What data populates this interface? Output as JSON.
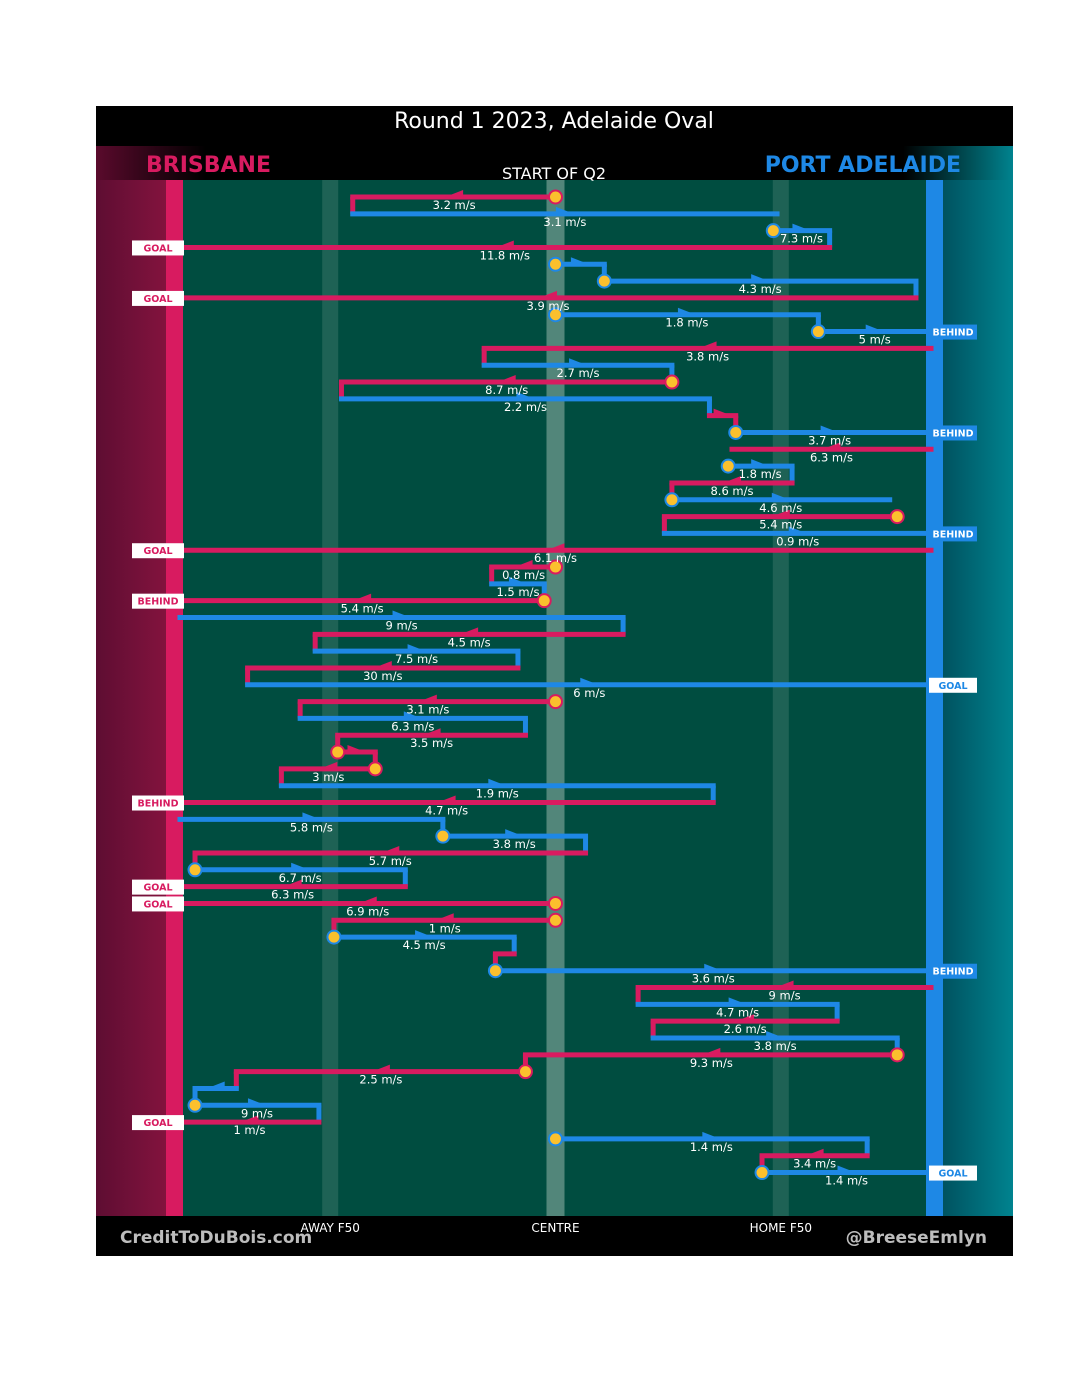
{
  "title": "Round 1 2023, Adelaide Oval",
  "teams": {
    "left": {
      "name": "BRISBANE",
      "color": "#d81b60"
    },
    "right": {
      "name": "PORT ADELAIDE",
      "color": "#1e88e5"
    }
  },
  "period_label": "START OF Q2",
  "credits": {
    "left": "CreditToDuBois.com",
    "right": "@BreeseEmlyn"
  },
  "colors": {
    "field": "#004d40",
    "brisbane": "#d81b60",
    "port_adelaide": "#1e88e5",
    "stoppage_marker": "#fbc02d",
    "top_bar": "#000000"
  },
  "chart_data": {
    "type": "line",
    "description_axis_x": [
      "AWAY F50",
      "CENTRE",
      "HOME F50"
    ],
    "x_marks": [
      {
        "label": "AWAY F50",
        "x": 20
      },
      {
        "label": "CENTRE",
        "x": 50
      },
      {
        "label": "HOME F50",
        "x": 80
      }
    ],
    "xlim": [
      0,
      100
    ],
    "segments": [
      {
        "team": "BRI",
        "from": 50.0,
        "to": 23.0,
        "speed": "3.2 m/s",
        "stoppage": true
      },
      {
        "team": "PA",
        "from": 23.0,
        "to": 79.5,
        "speed": "3.1 m/s"
      },
      {
        "team": "PA",
        "from": 79.0,
        "to": 86.5,
        "speed": "7.3 m/s",
        "stoppage": true
      },
      {
        "team": "BRI",
        "from": 86.5,
        "to": 0,
        "speed": "11.8 m/s",
        "result": "GOAL"
      },
      {
        "team": "PA",
        "from": 50.0,
        "to": 56.5,
        "speed": "",
        "stoppage": true
      },
      {
        "team": "PA",
        "from": 56.5,
        "to": 98.0,
        "speed": "4.3 m/s",
        "stoppage": true
      },
      {
        "team": "BRI",
        "from": 98.0,
        "to": 0,
        "speed": "3.9 m/s",
        "result": "GOAL"
      },
      {
        "team": "PA",
        "from": 50.0,
        "to": 85.0,
        "speed": "1.8 m/s",
        "stoppage": true
      },
      {
        "team": "PA",
        "from": 85.0,
        "to": 100,
        "speed": "5 m/s",
        "stoppage": true,
        "result": "BEHIND"
      },
      {
        "team": "BRI",
        "from": 100,
        "to": 40.5,
        "speed": "3.8 m/s"
      },
      {
        "team": "PA",
        "from": 40.5,
        "to": 65.5,
        "speed": "2.7 m/s"
      },
      {
        "team": "BRI",
        "from": 65.5,
        "to": 21.5,
        "speed": "8.7 m/s",
        "stoppage": true
      },
      {
        "team": "PA",
        "from": 21.5,
        "to": 70.5,
        "speed": "2.2 m/s"
      },
      {
        "team": "BRI",
        "from": 70.5,
        "to": 74.0,
        "speed": ""
      },
      {
        "team": "PA",
        "from": 74.0,
        "to": 99.0,
        "speed": "3.7 m/s",
        "stoppage": true,
        "result": "BEHIND"
      },
      {
        "team": "BRI",
        "from": 100,
        "to": 73.5,
        "speed": "6.3 m/s"
      },
      {
        "team": "PA",
        "from": 73.0,
        "to": 81.5,
        "speed": "1.8 m/s",
        "stoppage": true
      },
      {
        "team": "BRI",
        "from": 81.5,
        "to": 65.5,
        "speed": "8.6 m/s"
      },
      {
        "team": "PA",
        "from": 65.5,
        "to": 94.5,
        "speed": "4.6 m/s",
        "stoppage": true
      },
      {
        "team": "BRI",
        "from": 95.5,
        "to": 64.5,
        "speed": "5.4 m/s",
        "stoppage": true
      },
      {
        "team": "PA",
        "from": 64.5,
        "to": 100,
        "speed": "0.9 m/s",
        "result": "BEHIND"
      },
      {
        "team": "BRI",
        "from": 100,
        "to": 0,
        "speed": "6.1 m/s",
        "result": "GOAL"
      },
      {
        "team": "BRI",
        "from": 50.0,
        "to": 41.5,
        "speed": "0.8 m/s",
        "stoppage": true
      },
      {
        "team": "PA",
        "from": 41.5,
        "to": 48.5,
        "speed": "1.5 m/s"
      },
      {
        "team": "BRI",
        "from": 48.5,
        "to": 0,
        "speed": "5.4 m/s",
        "stoppage": true,
        "result": "BEHIND"
      },
      {
        "team": "PA",
        "from": 0,
        "to": 59.0,
        "speed": "9 m/s"
      },
      {
        "team": "BRI",
        "from": 59.0,
        "to": 18.0,
        "speed": "4.5 m/s"
      },
      {
        "team": "PA",
        "from": 18.0,
        "to": 45.0,
        "speed": "7.5 m/s"
      },
      {
        "team": "BRI",
        "from": 45.0,
        "to": 9.0,
        "speed": "30 m/s"
      },
      {
        "team": "PA",
        "from": 9.0,
        "to": 100,
        "speed": "6 m/s",
        "result": "GOAL"
      },
      {
        "team": "BRI",
        "from": 50.0,
        "to": 16.0,
        "speed": "3.1 m/s",
        "stoppage": true
      },
      {
        "team": "PA",
        "from": 16.0,
        "to": 46.0,
        "speed": "6.3 m/s"
      },
      {
        "team": "BRI",
        "from": 46.0,
        "to": 21.0,
        "speed": "3.5 m/s"
      },
      {
        "team": "BRI",
        "from": 21.0,
        "to": 26.0,
        "speed": "",
        "stoppage": true
      },
      {
        "team": "BRI",
        "from": 26.0,
        "to": 13.5,
        "speed": "3 m/s",
        "stoppage": true
      },
      {
        "team": "PA",
        "from": 13.5,
        "to": 71.0,
        "speed": "1.9 m/s"
      },
      {
        "team": "BRI",
        "from": 71.0,
        "to": 0,
        "speed": "4.7 m/s",
        "result": "BEHIND"
      },
      {
        "team": "PA",
        "from": 0,
        "to": 35.0,
        "speed": "5.8 m/s"
      },
      {
        "team": "PA",
        "from": 35.0,
        "to": 54.0,
        "speed": "3.8 m/s",
        "stoppage": true
      },
      {
        "team": "BRI",
        "from": 54.0,
        "to": 2.0,
        "speed": "5.7 m/s"
      },
      {
        "team": "PA",
        "from": 2.0,
        "to": 30.0,
        "speed": "6.7 m/s",
        "stoppage": true
      },
      {
        "team": "BRI",
        "from": 30.0,
        "to": 0,
        "speed": "6.3 m/s",
        "result": "GOAL"
      },
      {
        "team": "BRI",
        "from": 50.0,
        "to": 0,
        "speed": "6.9 m/s",
        "stoppage": true,
        "result": "GOAL"
      },
      {
        "team": "BRI",
        "from": 50.0,
        "to": 20.5,
        "speed": "1 m/s",
        "stoppage": true
      },
      {
        "team": "PA",
        "from": 20.5,
        "to": 44.5,
        "speed": "4.5 m/s",
        "stoppage": true
      },
      {
        "team": "BRI",
        "from": 44.5,
        "to": 42.0,
        "speed": ""
      },
      {
        "team": "PA",
        "from": 42.0,
        "to": 100,
        "speed": "3.6 m/s",
        "stoppage": true,
        "result": "BEHIND"
      },
      {
        "team": "BRI",
        "from": 100,
        "to": 61.0,
        "speed": "9 m/s"
      },
      {
        "team": "PA",
        "from": 61.0,
        "to": 87.5,
        "speed": "4.7 m/s"
      },
      {
        "team": "BRI",
        "from": 87.5,
        "to": 63.0,
        "speed": "2.6 m/s"
      },
      {
        "team": "PA",
        "from": 63.0,
        "to": 95.5,
        "speed": "3.8 m/s"
      },
      {
        "team": "BRI",
        "from": 95.5,
        "to": 46.0,
        "speed": "9.3 m/s",
        "stoppage": true
      },
      {
        "team": "BRI",
        "from": 46.0,
        "to": 7.5,
        "speed": "2.5 m/s",
        "stoppage": true
      },
      {
        "team": "PA",
        "from": 7.5,
        "to": 2.0,
        "speed": ""
      },
      {
        "team": "PA",
        "from": 2.0,
        "to": 18.5,
        "speed": "9 m/s",
        "stoppage": true
      },
      {
        "team": "BRI",
        "from": 18.5,
        "to": 0,
        "speed": "1 m/s",
        "result": "GOAL"
      },
      {
        "team": "PA",
        "from": 50.0,
        "to": 91.5,
        "speed": "1.4 m/s",
        "stoppage": true
      },
      {
        "team": "BRI",
        "from": 91.5,
        "to": 77.5,
        "speed": "3.4 m/s"
      },
      {
        "team": "PA",
        "from": 77.5,
        "to": 100,
        "speed": "1.4 m/s",
        "stoppage": true,
        "result": "GOAL"
      }
    ]
  }
}
